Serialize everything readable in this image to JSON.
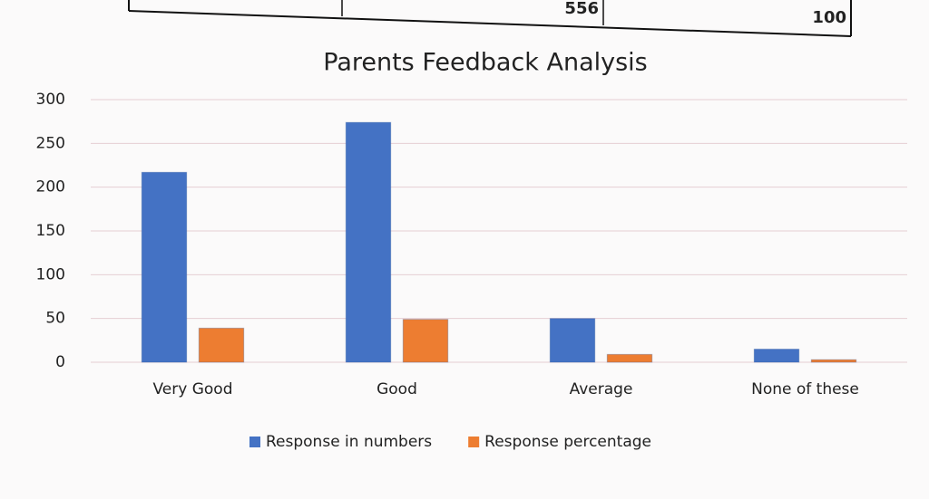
{
  "table_row": [
    556,
    100
  ],
  "chart_data": {
    "type": "bar",
    "title": "Parents Feedback Analysis",
    "categories": [
      "Very Good",
      "Good",
      "Average",
      "None of these"
    ],
    "series": [
      {
        "name": "Response in numbers",
        "color": "#4472c4",
        "values": [
          217,
          274,
          50,
          15
        ]
      },
      {
        "name": "Response percentage",
        "color": "#ed7d31",
        "values": [
          39,
          49,
          9,
          3
        ]
      }
    ],
    "ylim": [
      0,
      300
    ],
    "yticks": [
      0,
      50,
      100,
      150,
      200,
      250,
      300
    ],
    "grid": true,
    "legend": "bottom"
  }
}
